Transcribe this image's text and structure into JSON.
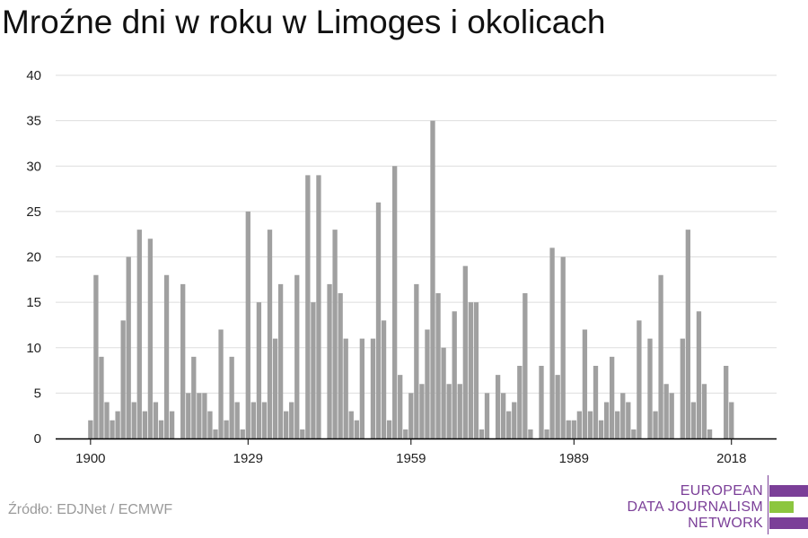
{
  "title": "Mroźne dni w roku w Limoges i okolicach",
  "source": "Źródło: EDJNet / ECMWF",
  "logo": {
    "line1": "EUROPEAN",
    "line2": "DATA JOURNALISM",
    "line3": "NETWORK",
    "color_primary": "#7b3f98",
    "color_accent": "#8cc63f"
  },
  "colors": {
    "bar": "#a0a0a0",
    "grid": "#dddddd",
    "axis": "#000000"
  },
  "chart_data": {
    "type": "bar",
    "x_tick_labels": [
      "1900",
      "1929",
      "1959",
      "1989",
      "2018"
    ],
    "y_ticks": [
      0,
      5,
      10,
      15,
      20,
      25,
      30,
      35,
      40
    ],
    "ylim": [
      0,
      40
    ],
    "grid": true,
    "years": [
      1900,
      1901,
      1902,
      1903,
      1904,
      1905,
      1906,
      1907,
      1908,
      1909,
      1910,
      1911,
      1912,
      1913,
      1914,
      1915,
      1916,
      1917,
      1918,
      1919,
      1920,
      1921,
      1922,
      1923,
      1924,
      1925,
      1926,
      1927,
      1928,
      1929,
      1930,
      1931,
      1932,
      1933,
      1934,
      1935,
      1936,
      1937,
      1938,
      1939,
      1940,
      1941,
      1942,
      1943,
      1944,
      1945,
      1946,
      1947,
      1948,
      1949,
      1950,
      1951,
      1952,
      1953,
      1954,
      1955,
      1956,
      1957,
      1958,
      1959,
      1960,
      1961,
      1962,
      1963,
      1964,
      1965,
      1966,
      1967,
      1968,
      1969,
      1970,
      1971,
      1972,
      1973,
      1974,
      1975,
      1976,
      1977,
      1978,
      1979,
      1980,
      1981,
      1982,
      1983,
      1984,
      1985,
      1986,
      1987,
      1988,
      1989,
      1990,
      1991,
      1992,
      1993,
      1994,
      1995,
      1996,
      1997,
      1998,
      1999,
      2000,
      2001,
      2002,
      2003,
      2004,
      2005,
      2006,
      2007,
      2008,
      2009,
      2010,
      2011,
      2012,
      2013,
      2014,
      2015,
      2016,
      2017,
      2018,
      2019
    ],
    "values": [
      2,
      18,
      9,
      4,
      2,
      3,
      13,
      20,
      4,
      23,
      3,
      22,
      4,
      2,
      18,
      3,
      0,
      17,
      5,
      9,
      5,
      5,
      3,
      1,
      12,
      2,
      9,
      4,
      1,
      25,
      4,
      15,
      4,
      23,
      11,
      17,
      3,
      4,
      18,
      1,
      29,
      15,
      29,
      0,
      17,
      23,
      16,
      11,
      3,
      2,
      11,
      0,
      11,
      26,
      13,
      2,
      30,
      7,
      1,
      5,
      17,
      6,
      12,
      35,
      16,
      10,
      6,
      14,
      6,
      19,
      15,
      15,
      1,
      5,
      0,
      7,
      5,
      3,
      4,
      8,
      16,
      1,
      0,
      8,
      1,
      21,
      7,
      20,
      2,
      2,
      3,
      12,
      3,
      8,
      2,
      4,
      9,
      3,
      5,
      4,
      1,
      13,
      0,
      11,
      3,
      18,
      6,
      5,
      0,
      11,
      23,
      4,
      14,
      6,
      1,
      0,
      0,
      8,
      4,
      0
    ]
  }
}
